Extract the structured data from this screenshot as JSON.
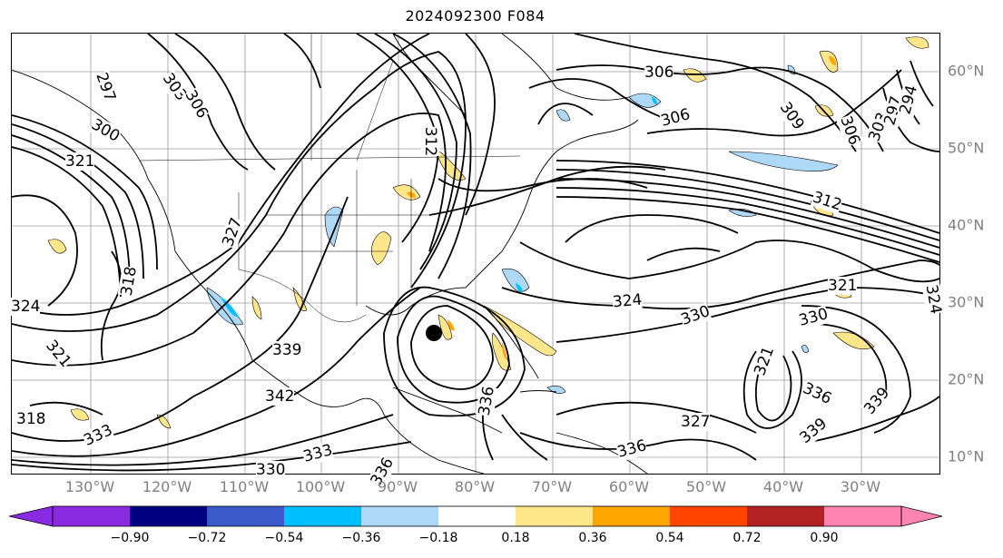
{
  "title": "2024092300 F084",
  "lon_labels": [
    "130°W",
    "120°W",
    "110°W",
    "100°W",
    "90°W",
    "80°W",
    "70°W",
    "60°W",
    "50°W",
    "40°W",
    "30°W"
  ],
  "lat_labels": [
    "60°N",
    "50°N",
    "40°N",
    "30°N",
    "20°N",
    "10°N"
  ],
  "contour_labels": [
    "297",
    "303",
    "306",
    "300",
    "321",
    "318",
    "324",
    "321",
    "318",
    "333",
    "330",
    "333",
    "339",
    "342",
    "312",
    "336",
    "306",
    "306",
    "309",
    "306",
    "303",
    "297",
    "294",
    "312",
    "324",
    "330",
    "330",
    "336",
    "327",
    "321",
    "336",
    "339",
    "339",
    "321",
    "324",
    "327",
    "336"
  ],
  "colorbar": {
    "ticks": [
      "−0.90",
      "−0.72",
      "−0.54",
      "−0.36",
      "−0.18",
      "0.18",
      "0.36",
      "0.54",
      "0.72",
      "0.90"
    ],
    "colors": [
      "#8a2be2",
      "#000080",
      "#3b5bcc",
      "#00bfff",
      "#add8f6",
      "#ffffff",
      "#ffe68a",
      "#ffa500",
      "#ff4500",
      "#b22222",
      "#ff85b0"
    ]
  }
}
